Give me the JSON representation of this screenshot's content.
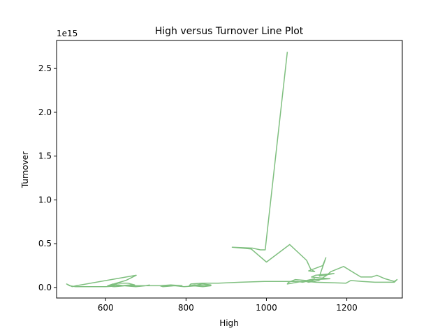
{
  "chart_data": {
    "type": "line",
    "title": "High versus Turnover Line Plot",
    "xlabel": "High",
    "ylabel": "Turnover",
    "y_offset_label": "1e15",
    "xlim": [
      478,
      1338
    ],
    "ylim": [
      -0.12,
      2.82
    ],
    "y_scale_exponent": 15,
    "xticks": [
      600,
      800,
      1000,
      1200
    ],
    "yticks": [
      0.0,
      0.5,
      1.0,
      1.5,
      2.0,
      2.5
    ],
    "ytick_labels": [
      "0.0",
      "0.5",
      "1.0",
      "1.5",
      "2.0",
      "2.5"
    ],
    "grid": false,
    "line_color": "#7fbf7f",
    "series": [
      {
        "x": [
          1052,
          997,
          985,
          965,
          915,
          940,
          962,
          1000,
          1058,
          1100,
          1110,
          1120,
          1105,
          1140,
          1148,
          1132,
          1168,
          1122,
          1112,
          1132,
          1158,
          1120,
          1105,
          1098,
          1072,
          1055,
          1052,
          1088,
          1100,
          1120,
          1115,
          1098,
          1105,
          1130,
          1150,
          1160,
          1192,
          1210,
          1235,
          1262,
          1275,
          1295,
          1318,
          1325,
          1318,
          1270,
          1238,
          1210,
          1198,
          1122,
          1100,
          1090,
          1078,
          1040,
          995,
          935,
          880,
          840,
          812,
          808,
          822,
          845,
          862,
          840,
          817,
          842,
          862,
          828,
          795,
          772,
          742,
          735,
          762,
          790,
          700,
          675,
          645,
          632,
          618,
          605,
          622,
          650,
          672,
          660,
          640,
          618,
          612,
          632,
          655,
          672,
          650,
          625,
          612,
          650,
          676,
          527,
          517,
          503,
          510,
          525,
          560,
          600,
          640,
          680,
          700,
          710
        ],
        "y": [
          2.69,
          0.43,
          0.43,
          0.45,
          0.46,
          0.45,
          0.44,
          0.29,
          0.49,
          0.31,
          0.21,
          0.18,
          0.19,
          0.25,
          0.34,
          0.13,
          0.16,
          0.14,
          0.12,
          0.11,
          0.1,
          0.09,
          0.07,
          0.08,
          0.09,
          0.06,
          0.04,
          0.07,
          0.08,
          0.1,
          0.08,
          0.07,
          0.06,
          0.08,
          0.14,
          0.18,
          0.24,
          0.19,
          0.12,
          0.12,
          0.14,
          0.1,
          0.07,
          0.09,
          0.06,
          0.06,
          0.07,
          0.08,
          0.05,
          0.06,
          0.07,
          0.06,
          0.07,
          0.07,
          0.07,
          0.06,
          0.05,
          0.05,
          0.04,
          0.02,
          0.03,
          0.02,
          0.03,
          0.04,
          0.02,
          0.01,
          0.02,
          0.02,
          0.01,
          0.02,
          0.01,
          0.02,
          0.03,
          0.02,
          0.02,
          0.01,
          0.02,
          0.03,
          0.04,
          0.02,
          0.01,
          0.02,
          0.03,
          0.03,
          0.02,
          0.01,
          0.02,
          0.05,
          0.05,
          0.03,
          0.02,
          0.02,
          0.03,
          0.08,
          0.14,
          0.02,
          0.01,
          0.04,
          0.02,
          0.01,
          0.01,
          0.01,
          0.02,
          0.02,
          0.02,
          0.03
        ]
      }
    ]
  }
}
